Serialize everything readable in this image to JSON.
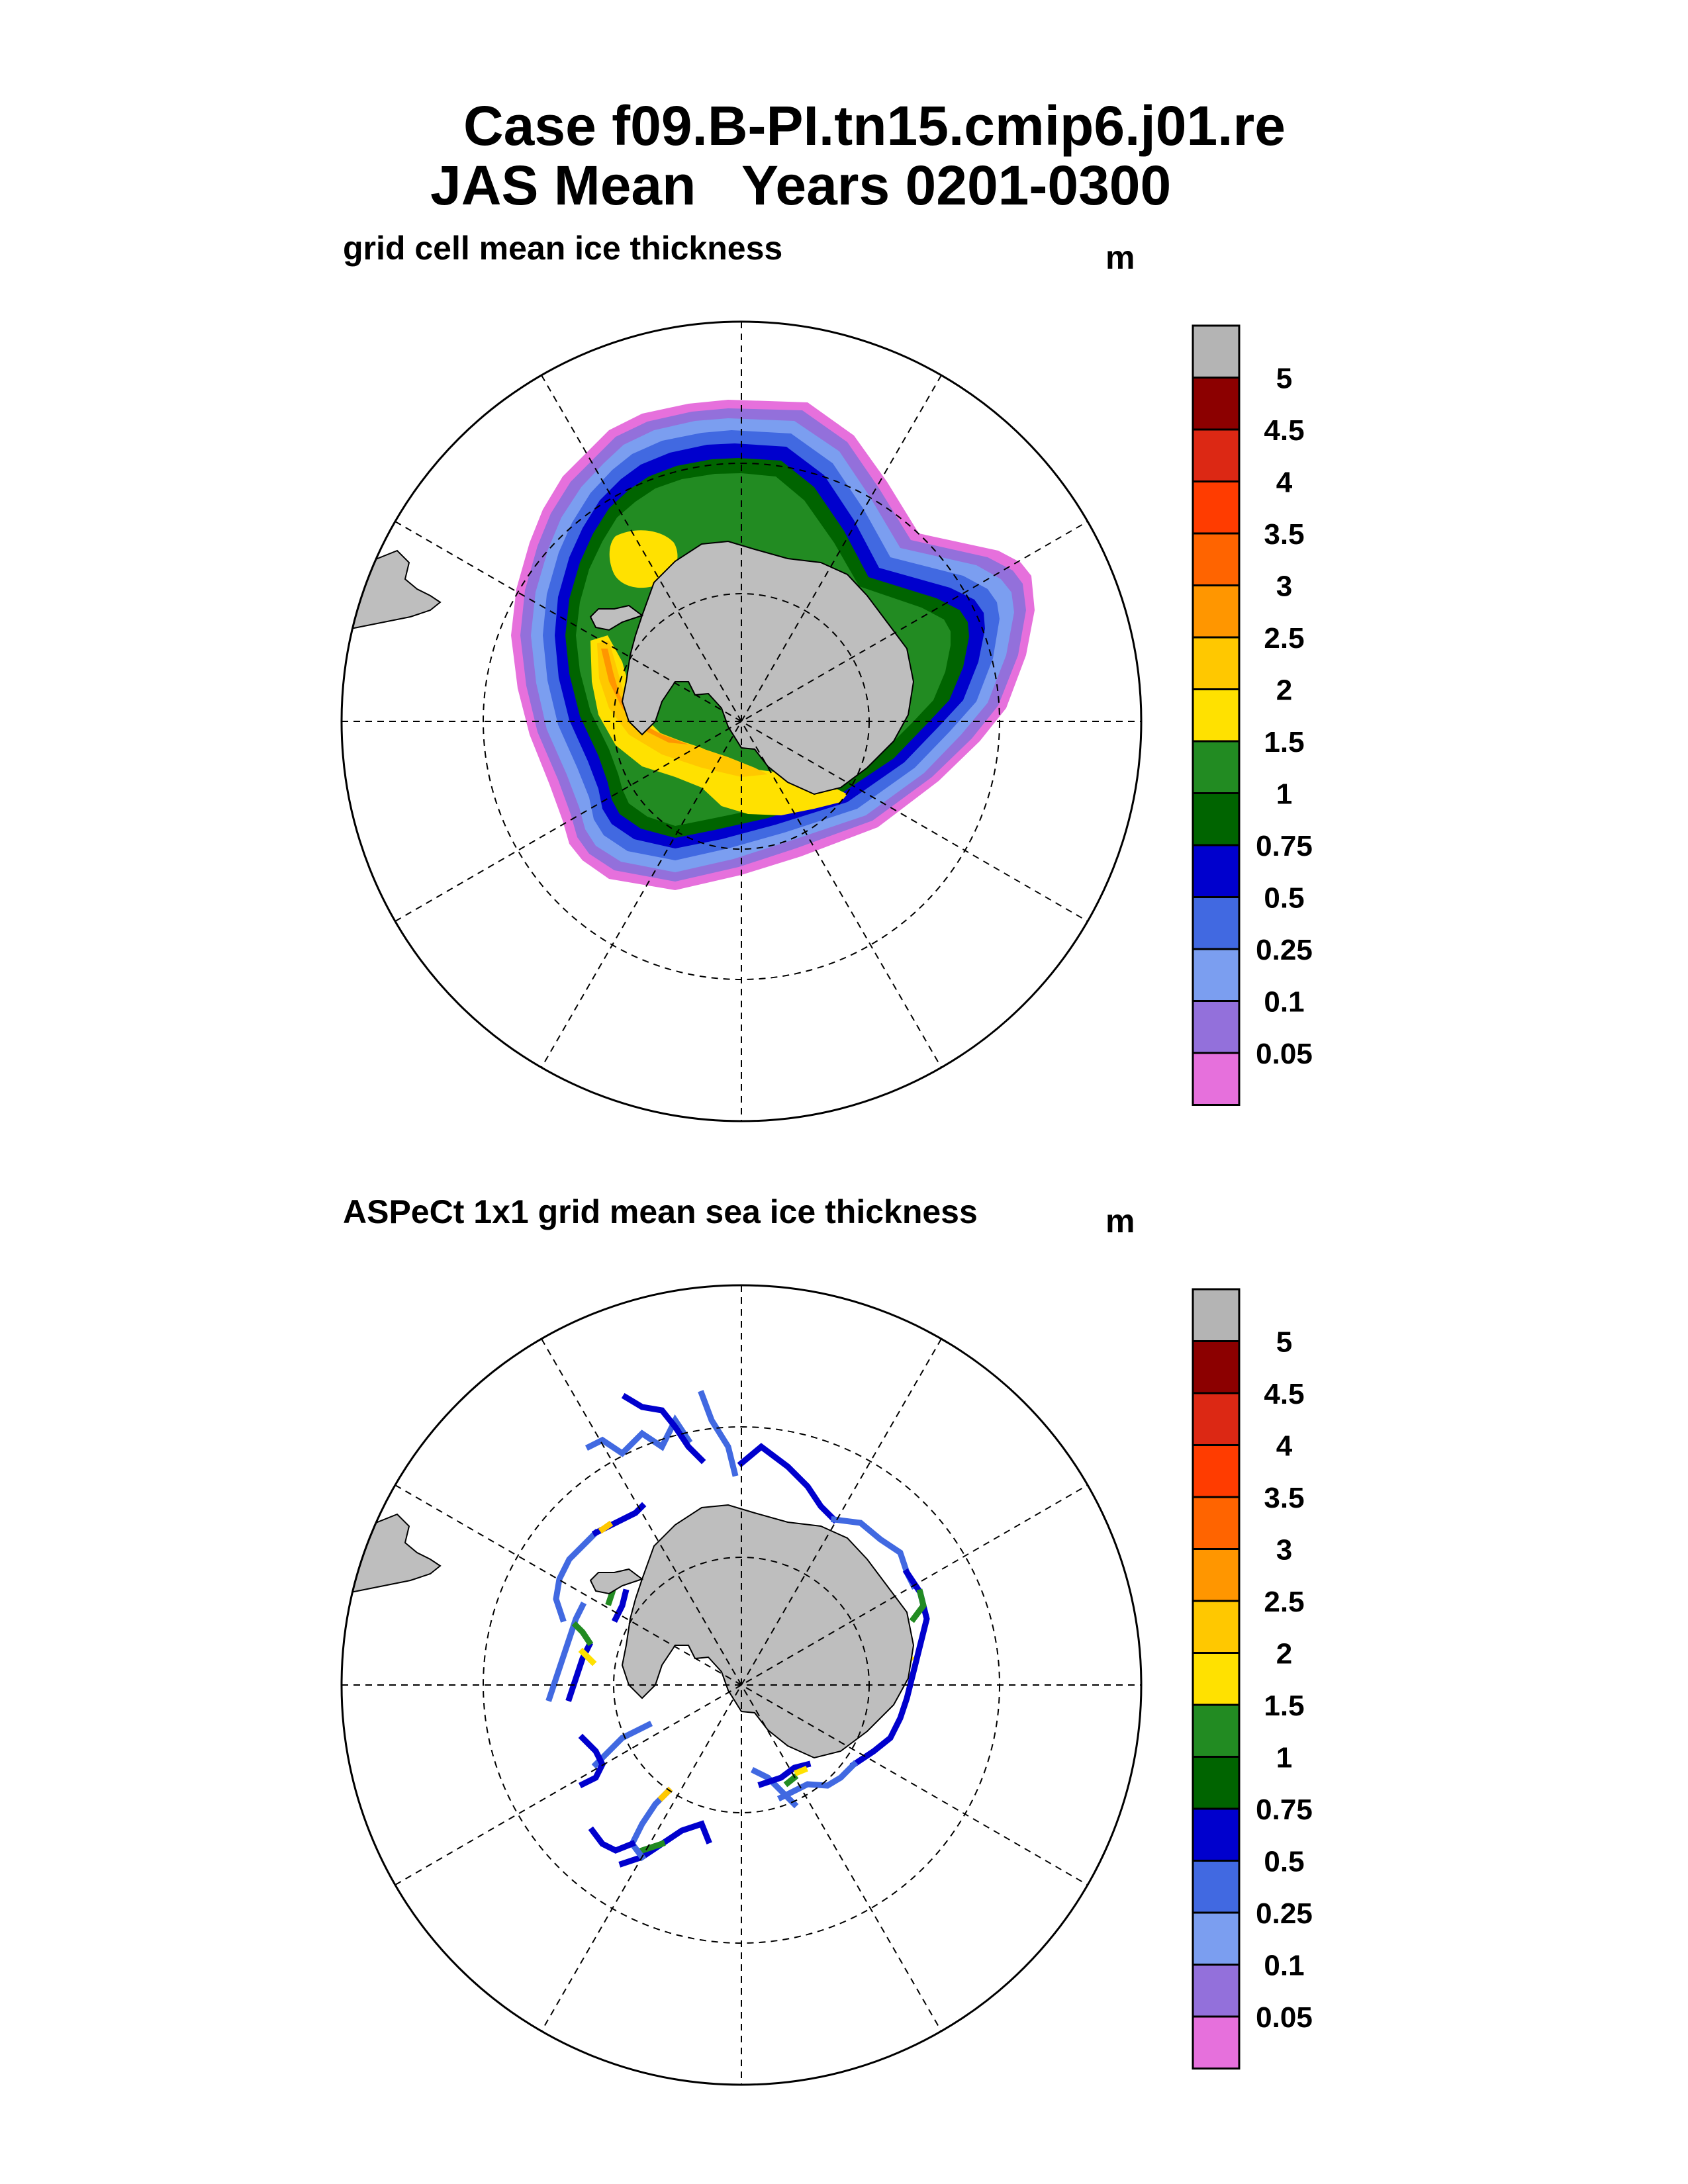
{
  "figure": {
    "title_line1": "Case f09.B-PI.tn15.cmip6.j01.re",
    "title_line2": "JAS Mean   Years 0201-0300"
  },
  "colorbar": {
    "labels": [
      "5",
      "4.5",
      "4",
      "3.5",
      "3",
      "2.5",
      "2",
      "1.5",
      "1",
      "0.75",
      "0.5",
      "0.25",
      "0.1",
      "0.05"
    ],
    "colors": [
      "#b4b4b4",
      "#8c0000",
      "#dc2814",
      "#ff3c00",
      "#ff6400",
      "#ff9600",
      "#ffc800",
      "#ffe100",
      "#228b22",
      "#006400",
      "#0000cd",
      "#4169e1",
      "#7b9ef0",
      "#9370db",
      "#e670dc"
    ]
  },
  "panels": [
    {
      "title": "grid cell mean ice thickness",
      "units": "m"
    },
    {
      "title": "ASPeCt 1x1 grid mean sea ice thickness",
      "units": "m"
    }
  ],
  "map": {
    "projection": "south polar stereographic",
    "land_color": "#bebebe",
    "grid_color": "#000000"
  }
}
